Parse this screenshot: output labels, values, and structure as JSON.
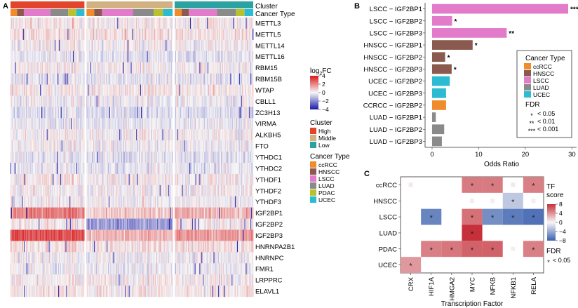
{
  "panel_letters": [
    "A",
    "B",
    "C"
  ],
  "chart_data": [
    {
      "type": "heatmap",
      "panel": "A",
      "title": "",
      "annotation_rows": [
        "Cluster",
        "Cancer Type"
      ],
      "genes": [
        "METTL3",
        "METTL5",
        "METTL14",
        "METTL16",
        "RBM15",
        "RBM15B",
        "WTAP",
        "CBLL1",
        "ZC3H13",
        "VIRMA",
        "ALKBH5",
        "FTO",
        "YTHDC1",
        "YTHDC2",
        "YTHDF1",
        "YTHDF2",
        "YTHDF3",
        "IGF2BP1",
        "IGF2BP2",
        "IGF2BP3",
        "HNRNPA2B1",
        "HNRNPC",
        "FMR1",
        "LRPPRC",
        "ELAVL1"
      ],
      "gene_mean_log2fc": [
        0.2,
        0.4,
        0.1,
        -0.3,
        0.1,
        -0.2,
        0.3,
        -0.1,
        -0.4,
        -0.2,
        0.1,
        0.0,
        -0.3,
        -0.2,
        0.2,
        0.1,
        0.0,
        1.6,
        -0.6,
        2.2,
        0.4,
        0.0,
        -0.1,
        0.2,
        0.3
      ],
      "clusters": [
        {
          "name": "High",
          "color": "#e1452b",
          "n_samples": 110
        },
        {
          "name": "Middle",
          "color": "#d2b283",
          "n_samples": 128
        },
        {
          "name": "Low",
          "color": "#2ba3a3",
          "n_samples": 117
        }
      ],
      "colorbar": {
        "title_base": "log",
        "title_sub": "2",
        "title_tail": "FC",
        "ticks": [
          4,
          2,
          0,
          -2,
          -4
        ],
        "range": [
          -4,
          4
        ]
      },
      "legend_cluster": {
        "title": "Cluster",
        "items": [
          "High",
          "Middle",
          "Low"
        ]
      },
      "legend_cancer": {
        "title": "Cancer Type",
        "items": [
          {
            "name": "ccRCC",
            "color": "#f08c2c"
          },
          {
            "name": "HNSCC",
            "color": "#8b5a4f"
          },
          {
            "name": "LSCC",
            "color": "#e27bc9"
          },
          {
            "name": "LUAD",
            "color": "#8a8a8a"
          },
          {
            "name": "PDAC",
            "color": "#b9c22e"
          },
          {
            "name": "UCEC",
            "color": "#2bbbd3"
          }
        ]
      }
    },
    {
      "type": "bar",
      "panel": "B",
      "orientation": "horizontal",
      "categories": [
        "LSCC − IGF2BP1",
        "LSCC − IGF2BP2",
        "LSCC − IGF2BP3",
        "HNSCC − IGF2BP1",
        "HNSCC − IGF2BP2",
        "HNSCC − IGF2BP3",
        "UCEC − IGF2BP2",
        "UCEC − IGF2BP3",
        "CCRCC − IGF2BP2",
        "LUAD − IGF2BP1",
        "LUAD − IGF2BP2",
        "LUAD − IGF2BP3"
      ],
      "values": [
        29.2,
        4.3,
        16.0,
        8.7,
        2.8,
        4.2,
        3.8,
        3.0,
        3.0,
        0.8,
        2.6,
        2.1
      ],
      "cancer_type": [
        "LSCC",
        "LSCC",
        "LSCC",
        "HNSCC",
        "HNSCC",
        "HNSCC",
        "UCEC",
        "UCEC",
        "ccRCC",
        "LUAD",
        "LUAD",
        "LUAD"
      ],
      "significance": [
        "***",
        "*",
        "**",
        "*",
        "*",
        "*",
        "",
        "",
        "",
        "",
        "",
        ""
      ],
      "xlabel": "Odds Ratio",
      "xlim": [
        -1.5,
        31
      ],
      "xticks": [
        0,
        10,
        20,
        30
      ],
      "legend_title": "Cancer Type",
      "legend_items": [
        {
          "name": "ccRCC",
          "color": "#f08c2c"
        },
        {
          "name": "HNSCC",
          "color": "#8b5a4f"
        },
        {
          "name": "LSCC",
          "color": "#e27bc9"
        },
        {
          "name": "LUAD",
          "color": "#8a8a8a"
        },
        {
          "name": "UCEC",
          "color": "#2bbbd3"
        }
      ],
      "fdr_title": "FDR",
      "fdr_items": [
        {
          "sym": "*",
          "label": "< 0.05"
        },
        {
          "sym": "**",
          "label": "< 0.01"
        },
        {
          "sym": "***",
          "label": "< 0.001"
        }
      ]
    },
    {
      "type": "heatmap",
      "panel": "C",
      "rows": [
        "ccRCC",
        "HNSCC",
        "LSCC",
        "LUAD",
        "PDAC",
        "UCEC"
      ],
      "cols": [
        "CRX",
        "HIF1A",
        "HMGA2",
        "MYC",
        "NFKB",
        "NFKB1",
        "RELA"
      ],
      "values": [
        [
          0.6,
          0.0,
          0.0,
          5.0,
          5.0,
          0.6,
          4.8
        ],
        [
          0.0,
          0.0,
          0.0,
          0.5,
          0.4,
          -2.4,
          0.4
        ],
        [
          0.0,
          -6.0,
          0.0,
          5.4,
          -5.5,
          -6.5,
          -7.0
        ],
        [
          0.0,
          0.0,
          0.0,
          8.0,
          0.0,
          0.0,
          0.0
        ],
        [
          0.0,
          4.8,
          5.2,
          6.0,
          6.0,
          0.4,
          4.8
        ],
        [
          3.8,
          0.0,
          0.0,
          0.0,
          0.0,
          0.0,
          0.0
        ]
      ],
      "significant": [
        [
          false,
          false,
          false,
          true,
          true,
          false,
          true
        ],
        [
          false,
          false,
          false,
          false,
          false,
          true,
          false
        ],
        [
          false,
          true,
          false,
          true,
          true,
          true,
          true
        ],
        [
          false,
          false,
          false,
          true,
          false,
          false,
          false
        ],
        [
          false,
          true,
          true,
          true,
          true,
          false,
          true
        ],
        [
          true,
          false,
          false,
          false,
          false,
          false,
          false
        ]
      ],
      "xlabel": "Transcription Factor",
      "ylabel": "",
      "colorbar_title": [
        "TF",
        "score"
      ],
      "colorbar_ticks": [
        8,
        4,
        0,
        -4,
        -8
      ],
      "colorbar_range": [
        -8,
        8
      ],
      "fdr_title": "FDR",
      "fdr_item": {
        "sym": "*",
        "label": "< 0.05"
      }
    }
  ]
}
